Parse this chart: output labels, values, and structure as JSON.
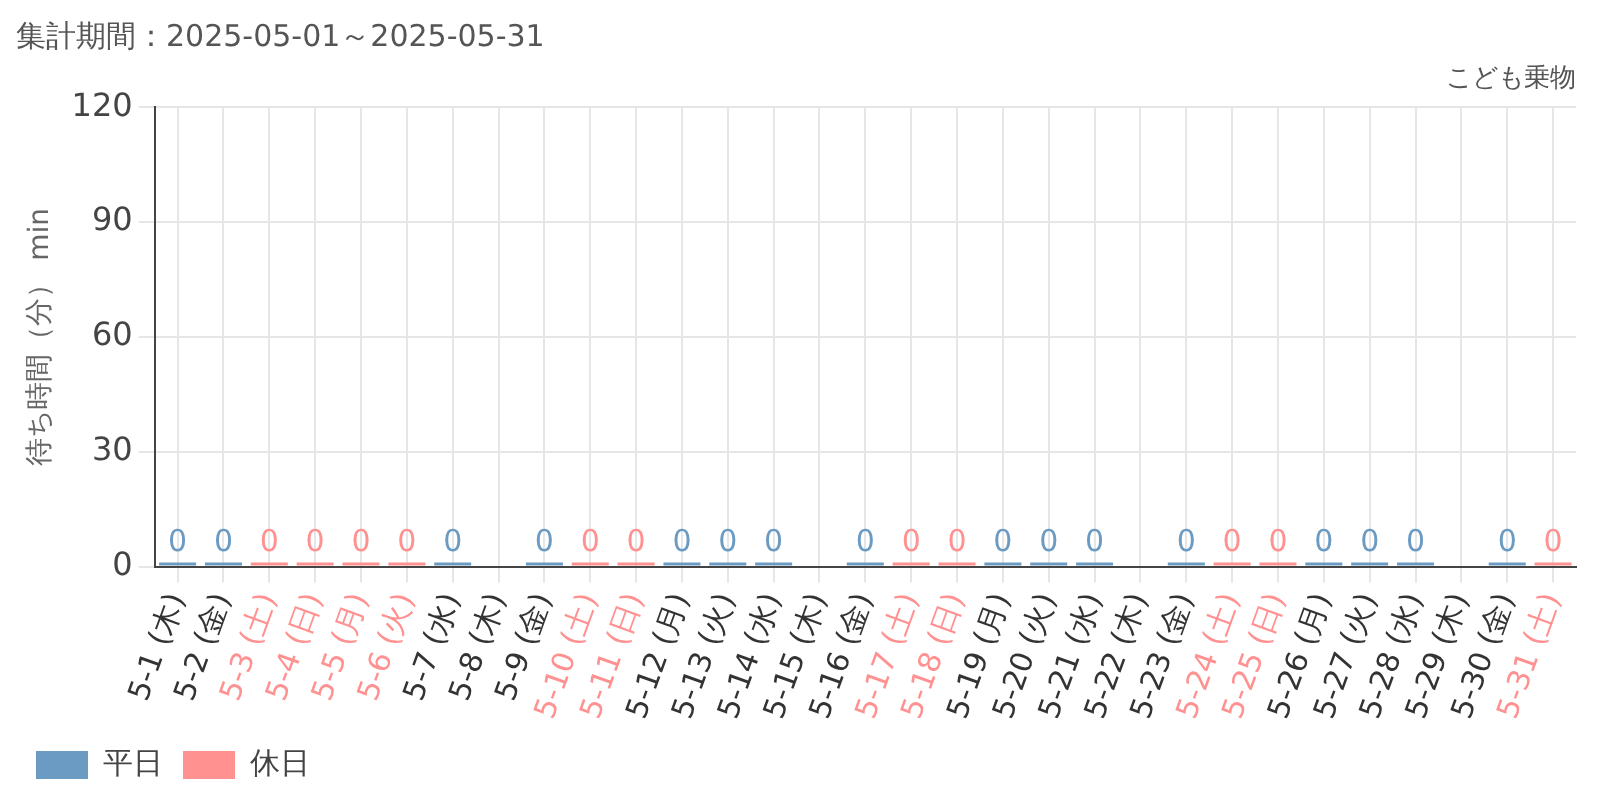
{
  "chart_data": {
    "type": "bar",
    "title": "集計期間：2025-05-01～2025-05-31",
    "subtitle": "こども乗物",
    "ylabel": "待ち時間（分） min",
    "categories": [
      "5-1 (木)",
      "5-2 (金)",
      "5-3 (土)",
      "5-4 (日)",
      "5-5 (月)",
      "5-6 (火)",
      "5-7 (水)",
      "5-8 (木)",
      "5-9 (金)",
      "5-10 (土)",
      "5-11 (日)",
      "5-12 (月)",
      "5-13 (火)",
      "5-14 (水)",
      "5-15 (木)",
      "5-16 (金)",
      "5-17 (土)",
      "5-18 (日)",
      "5-19 (月)",
      "5-20 (火)",
      "5-21 (水)",
      "5-22 (木)",
      "5-23 (金)",
      "5-24 (土)",
      "5-25 (日)",
      "5-26 (月)",
      "5-27 (火)",
      "5-28 (水)",
      "5-29 (木)",
      "5-30 (金)",
      "5-31 (土)"
    ],
    "series": [
      {
        "name": "平日",
        "color": "#6b9bc3",
        "values": [
          0,
          0,
          null,
          null,
          null,
          null,
          0,
          null,
          0,
          null,
          null,
          0,
          0,
          0,
          null,
          0,
          null,
          null,
          0,
          0,
          0,
          null,
          0,
          null,
          null,
          0,
          0,
          0,
          null,
          0,
          null
        ]
      },
      {
        "name": "休日",
        "color": "#ff9191",
        "values": [
          null,
          null,
          0,
          0,
          0,
          0,
          null,
          null,
          null,
          0,
          0,
          null,
          null,
          null,
          null,
          null,
          0,
          0,
          null,
          null,
          null,
          null,
          null,
          0,
          0,
          null,
          null,
          null,
          null,
          null,
          0
        ]
      }
    ],
    "ylim": [
      0,
      120
    ],
    "yticks": [
      0,
      30,
      60,
      90,
      120
    ],
    "grid": true,
    "legend": "bottom left",
    "data_labels": true
  }
}
